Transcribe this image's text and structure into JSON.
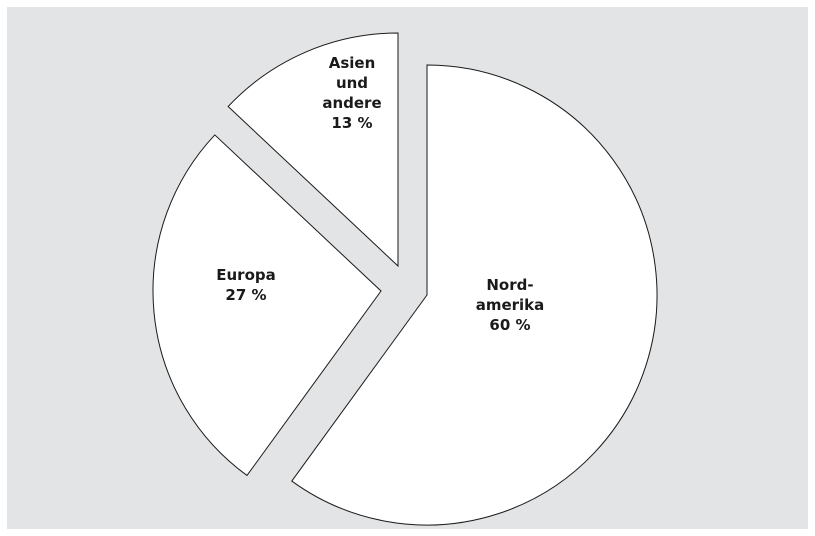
{
  "chart_data": {
    "type": "pie",
    "exploded": true,
    "background_color": "#e3e4e5",
    "slice_fill": "#ffffff",
    "slice_stroke": "#1a1a1a",
    "slices": [
      {
        "label_lines": [
          "Nord-",
          "amerika"
        ],
        "value": 60,
        "value_text": "60 %"
      },
      {
        "label_lines": [
          "Europa"
        ],
        "value": 27,
        "value_text": "27 %"
      },
      {
        "label_lines": [
          "Asien",
          "und",
          "andere"
        ],
        "value": 13,
        "value_text": "13 %"
      }
    ]
  }
}
